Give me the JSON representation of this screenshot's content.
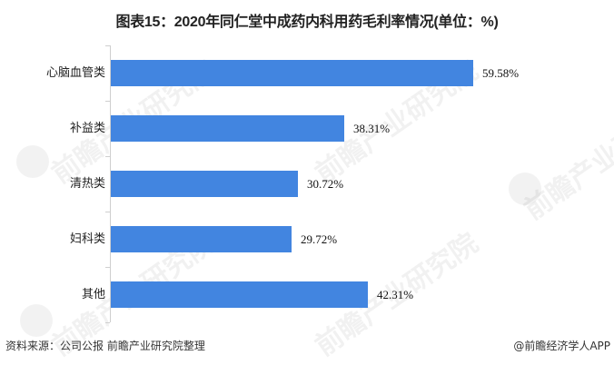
{
  "title": "图表15：2020年同仁堂中成药内科用药毛利率情况(单位：%)",
  "footer": {
    "source": "资料来源：公司公报 前瞻产业研究院整理",
    "credit": "@前瞻经济学人APP"
  },
  "watermark": "前瞻产业研究院",
  "colors": {
    "bar": "#4285E0",
    "axis": "#CFCFCF"
  },
  "chart_data": {
    "type": "bar",
    "orientation": "horizontal",
    "title": "图表15：2020年同仁堂中成药内科用药毛利率情况(单位：%)",
    "categories": [
      "心脑血管类",
      "补益类",
      "清热类",
      "妇科类",
      "其他"
    ],
    "values": [
      59.58,
      38.31,
      30.72,
      29.72,
      42.31
    ],
    "labels": [
      "59.58%",
      "38.31%",
      "30.72%",
      "29.72%",
      "42.31%"
    ],
    "xlabel": "",
    "ylabel": "",
    "unit": "%",
    "xlim": [
      0,
      60
    ],
    "grid": false,
    "legend": null
  }
}
